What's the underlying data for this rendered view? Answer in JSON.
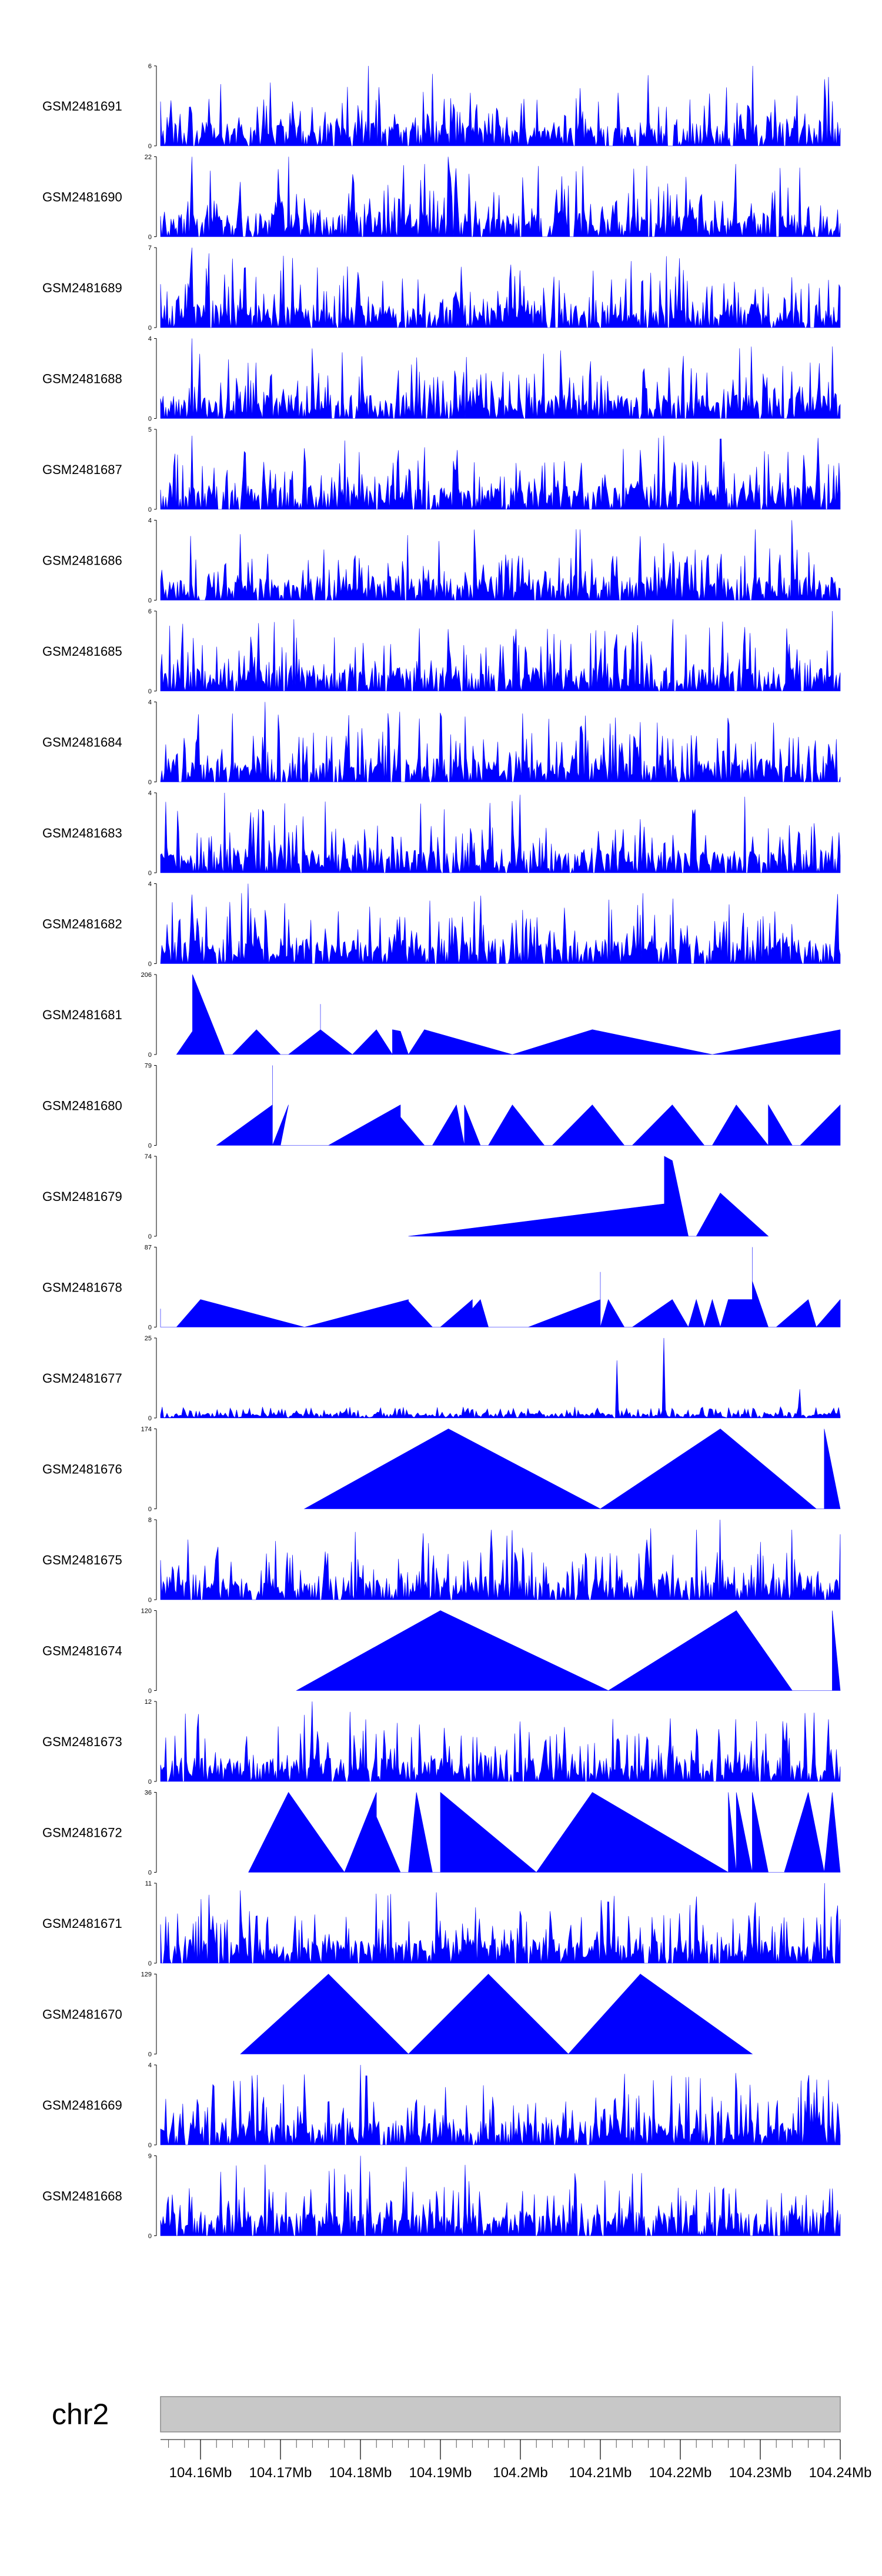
{
  "chart_data": {
    "type": "area",
    "title": "",
    "fill_color": "#0000ff",
    "ideogram_color": "#c8c8c8",
    "chromosome": "chr2",
    "x_range_mb": [
      104.155,
      104.24
    ],
    "x_ticks": [
      "104.16Mb",
      "104.17Mb",
      "104.18Mb",
      "104.19Mb",
      "104.2Mb",
      "104.21Mb",
      "104.22Mb",
      "104.23Mb",
      "104.24Mb"
    ],
    "x_tick_values": [
      104.16,
      104.17,
      104.18,
      104.19,
      104.2,
      104.21,
      104.22,
      104.23,
      104.24
    ],
    "tracks": [
      {
        "name": "GSM2481691",
        "ymax": 6,
        "ymax_label": "6",
        "style": "dense",
        "seed": 11,
        "peaks": [
          [
            104.181,
            6
          ],
          [
            104.189,
            5.4
          ],
          [
            104.229,
            6
          ],
          [
            104.238,
            5
          ]
        ]
      },
      {
        "name": "GSM2481690",
        "ymax": 22,
        "ymax_label": "22",
        "style": "dense-mixed",
        "seed": 12,
        "peaks": [
          [
            104.159,
            22
          ],
          [
            104.171,
            22
          ],
          [
            104.188,
            20
          ],
          [
            104.191,
            22
          ],
          [
            104.207,
            18
          ],
          [
            104.227,
            20
          ],
          [
            104.235,
            19
          ]
        ]
      },
      {
        "name": "GSM2481689",
        "ymax": 7,
        "ymax_label": "7",
        "style": "dense",
        "seed": 13,
        "peaks": [
          [
            104.159,
            7
          ],
          [
            104.161,
            6.5
          ],
          [
            104.17,
            5
          ],
          [
            104.2,
            5
          ]
        ]
      },
      {
        "name": "GSM2481688",
        "ymax": 4,
        "ymax_label": "4",
        "style": "dense",
        "seed": 14,
        "peaks": [
          [
            104.159,
            4
          ],
          [
            104.174,
            3.5
          ],
          [
            104.205,
            3.4
          ],
          [
            104.239,
            3.6
          ]
        ]
      },
      {
        "name": "GSM2481687",
        "ymax": 5,
        "ymax_label": "5",
        "style": "dense",
        "seed": 15,
        "peaks": [
          [
            104.159,
            4.6
          ],
          [
            104.178,
            4.3
          ],
          [
            104.218,
            4.6
          ],
          [
            104.225,
            4.4
          ]
        ]
      },
      {
        "name": "GSM2481686",
        "ymax": 4,
        "ymax_label": "4",
        "style": "dense",
        "seed": 16,
        "peaks": [
          [
            104.165,
            3.3
          ],
          [
            104.215,
            3.2
          ],
          [
            104.234,
            4
          ]
        ]
      },
      {
        "name": "GSM2481685",
        "ymax": 6,
        "ymax_label": "6",
        "style": "dense",
        "seed": 17,
        "peaks": [
          [
            104.172,
            4
          ],
          [
            104.228,
            4.8
          ],
          [
            104.239,
            6
          ]
        ]
      },
      {
        "name": "GSM2481684",
        "ymax": 4,
        "ymax_label": "4",
        "style": "dense",
        "seed": 18,
        "peaks": [
          [
            104.168,
            4
          ],
          [
            104.226,
            3.2
          ]
        ]
      },
      {
        "name": "GSM2481683",
        "ymax": 4,
        "ymax_label": "4",
        "style": "dense",
        "seed": 19,
        "peaks": [
          [
            104.163,
            4
          ],
          [
            104.2,
            3.9
          ],
          [
            104.228,
            3.8
          ]
        ]
      },
      {
        "name": "GSM2481682",
        "ymax": 4,
        "ymax_label": "4",
        "style": "dense",
        "seed": 20,
        "peaks": [
          [
            104.166,
            4
          ],
          [
            104.195,
            3.4
          ],
          [
            104.211,
            3.2
          ]
        ]
      },
      {
        "name": "GSM2481681",
        "ymax": 206,
        "ymax_label": "206",
        "style": "poly",
        "points": [
          [
            104.157,
            0
          ],
          [
            104.159,
            60
          ],
          [
            104.159,
            206
          ],
          [
            104.163,
            0
          ],
          [
            104.164,
            0
          ],
          [
            104.167,
            64
          ],
          [
            104.17,
            0
          ],
          [
            104.171,
            0
          ],
          [
            104.175,
            64
          ],
          [
            104.175,
            130
          ],
          [
            104.175,
            64
          ],
          [
            104.179,
            0
          ],
          [
            104.182,
            64
          ],
          [
            104.184,
            0
          ],
          [
            104.184,
            64
          ],
          [
            104.185,
            60
          ],
          [
            104.186,
            0
          ],
          [
            104.188,
            64
          ],
          [
            104.199,
            0
          ],
          [
            104.209,
            64
          ],
          [
            104.224,
            0
          ],
          [
            104.24,
            64
          ]
        ]
      },
      {
        "name": "GSM2481680",
        "ymax": 79,
        "ymax_label": "79",
        "style": "poly",
        "points": [
          [
            104.162,
            0
          ],
          [
            104.169,
            40
          ],
          [
            104.169,
            79
          ],
          [
            104.169,
            0
          ],
          [
            104.171,
            40
          ],
          [
            104.17,
            0
          ],
          [
            104.176,
            0
          ],
          [
            104.185,
            40
          ],
          [
            104.185,
            28
          ],
          [
            104.188,
            0
          ],
          [
            104.189,
            0
          ],
          [
            104.192,
            40
          ],
          [
            104.193,
            0
          ],
          [
            104.193,
            40
          ],
          [
            104.195,
            0
          ],
          [
            104.196,
            0
          ],
          [
            104.199,
            40
          ],
          [
            104.203,
            0
          ],
          [
            104.204,
            0
          ],
          [
            104.209,
            40
          ],
          [
            104.213,
            0
          ],
          [
            104.214,
            0
          ],
          [
            104.219,
            40
          ],
          [
            104.223,
            0
          ],
          [
            104.224,
            0
          ],
          [
            104.227,
            40
          ],
          [
            104.231,
            0
          ],
          [
            104.231,
            40
          ],
          [
            104.234,
            0
          ],
          [
            104.235,
            0
          ],
          [
            104.24,
            40
          ]
        ]
      },
      {
        "name": "GSM2481679",
        "ymax": 74,
        "ymax_label": "74",
        "style": "poly",
        "points": [
          [
            104.186,
            0
          ],
          [
            104.218,
            30
          ],
          [
            104.218,
            74
          ],
          [
            104.219,
            70
          ],
          [
            104.221,
            0
          ],
          [
            104.222,
            0
          ],
          [
            104.225,
            40
          ],
          [
            104.231,
            0
          ]
        ]
      },
      {
        "name": "GSM2481678",
        "ymax": 87,
        "ymax_label": "87",
        "style": "poly",
        "points": [
          [
            104.155,
            20
          ],
          [
            104.155,
            0
          ],
          [
            104.157,
            0
          ],
          [
            104.16,
            30
          ],
          [
            104.173,
            0
          ],
          [
            104.186,
            30
          ],
          [
            104.186,
            28
          ],
          [
            104.189,
            0
          ],
          [
            104.19,
            0
          ],
          [
            104.194,
            30
          ],
          [
            104.194,
            20
          ],
          [
            104.195,
            30
          ],
          [
            104.196,
            0
          ],
          [
            104.197,
            0
          ],
          [
            104.201,
            0
          ],
          [
            104.21,
            30
          ],
          [
            104.21,
            60
          ],
          [
            104.21,
            0
          ],
          [
            104.211,
            30
          ],
          [
            104.213,
            0
          ],
          [
            104.214,
            0
          ],
          [
            104.219,
            30
          ],
          [
            104.221,
            0
          ],
          [
            104.222,
            30
          ],
          [
            104.223,
            0
          ],
          [
            104.224,
            30
          ],
          [
            104.225,
            0
          ],
          [
            104.226,
            30
          ],
          [
            104.229,
            30
          ],
          [
            104.229,
            87
          ],
          [
            104.229,
            50
          ],
          [
            104.231,
            0
          ],
          [
            104.232,
            0
          ],
          [
            104.236,
            30
          ],
          [
            104.237,
            0
          ],
          [
            104.24,
            30
          ]
        ]
      },
      {
        "name": "GSM2481677",
        "ymax": 25,
        "ymax_label": "25",
        "style": "sparse",
        "seed": 21,
        "peaks": [
          [
            104.212,
            18
          ],
          [
            104.218,
            25
          ],
          [
            104.235,
            9
          ]
        ]
      },
      {
        "name": "GSM2481676",
        "ymax": 174,
        "ymax_label": "174",
        "style": "poly",
        "points": [
          [
            104.173,
            0
          ],
          [
            104.191,
            174
          ],
          [
            104.21,
            0
          ],
          [
            104.225,
            174
          ],
          [
            104.237,
            0
          ],
          [
            104.238,
            0
          ],
          [
            104.238,
            174
          ],
          [
            104.24,
            0
          ]
        ]
      },
      {
        "name": "GSM2481675",
        "ymax": 8,
        "ymax_label": "8",
        "style": "dense",
        "seed": 22,
        "peaks": [
          [
            104.222,
            7
          ],
          [
            104.225,
            8
          ],
          [
            104.234,
            7
          ]
        ]
      },
      {
        "name": "GSM2481674",
        "ymax": 120,
        "ymax_label": "120",
        "style": "poly",
        "points": [
          [
            104.172,
            0
          ],
          [
            104.19,
            120
          ],
          [
            104.211,
            0
          ],
          [
            104.227,
            120
          ],
          [
            104.227,
            40
          ],
          [
            104.227,
            120
          ],
          [
            104.234,
            0
          ],
          [
            104.239,
            0
          ],
          [
            104.239,
            120
          ],
          [
            104.24,
            0
          ]
        ]
      },
      {
        "name": "GSM2481673",
        "ymax": 12,
        "ymax_label": "12",
        "style": "dense",
        "seed": 23,
        "peaks": [
          [
            104.174,
            12
          ],
          [
            104.173,
            10
          ],
          [
            104.2,
            9
          ]
        ]
      },
      {
        "name": "GSM2481672",
        "ymax": 36,
        "ymax_label": "36",
        "style": "poly",
        "points": [
          [
            104.166,
            0
          ],
          [
            104.171,
            36
          ],
          [
            104.178,
            0
          ],
          [
            104.182,
            36
          ],
          [
            104.182,
            25
          ],
          [
            104.185,
            0
          ],
          [
            104.186,
            0
          ],
          [
            104.187,
            36
          ],
          [
            104.189,
            0
          ],
          [
            104.19,
            0
          ],
          [
            104.19,
            36
          ],
          [
            104.202,
            0
          ],
          [
            104.209,
            36
          ],
          [
            104.226,
            0
          ],
          [
            104.226,
            36
          ],
          [
            104.227,
            0
          ],
          [
            104.227,
            36
          ],
          [
            104.229,
            0
          ],
          [
            104.229,
            36
          ],
          [
            104.231,
            0
          ],
          [
            104.233,
            0
          ],
          [
            104.236,
            36
          ],
          [
            104.238,
            0
          ],
          [
            104.239,
            36
          ],
          [
            104.24,
            0
          ]
        ]
      },
      {
        "name": "GSM2481671",
        "ymax": 11,
        "ymax_label": "11",
        "style": "dense",
        "seed": 24,
        "peaks": [
          [
            104.165,
            10
          ],
          [
            104.238,
            11
          ]
        ]
      },
      {
        "name": "GSM2481670",
        "ymax": 129,
        "ymax_label": "129",
        "style": "poly",
        "points": [
          [
            104.165,
            0
          ],
          [
            104.176,
            129
          ],
          [
            104.186,
            0
          ],
          [
            104.196,
            129
          ],
          [
            104.206,
            0
          ],
          [
            104.215,
            129
          ],
          [
            104.215,
            60
          ],
          [
            104.215,
            129
          ],
          [
            104.229,
            0
          ]
        ]
      },
      {
        "name": "GSM2481669",
        "ymax": 4,
        "ymax_label": "4",
        "style": "dense",
        "seed": 25,
        "peaks": [
          [
            104.18,
            4
          ],
          [
            104.221,
            3.4
          ]
        ]
      },
      {
        "name": "GSM2481668",
        "ymax": 9,
        "ymax_label": "9",
        "style": "dense",
        "seed": 26,
        "peaks": [
          [
            104.168,
            8
          ],
          [
            104.18,
            9
          ],
          [
            104.214,
            7
          ]
        ]
      }
    ]
  }
}
